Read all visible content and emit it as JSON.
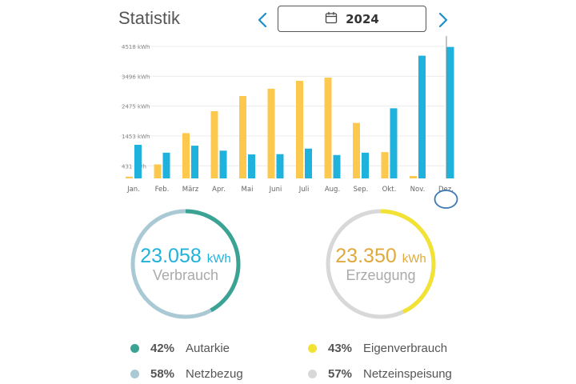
{
  "header": {
    "title": "Statistik",
    "year": "2024",
    "prev_icon": "chevron-left-icon",
    "next_icon": "chevron-right-icon",
    "calendar_icon": "calendar-icon"
  },
  "colors": {
    "erzeugung": "#fcc94e",
    "verbrauch": "#1fb2dc",
    "autarkie": "#3aa393",
    "netzbezug": "#a9c9d4",
    "eigenverbrauch": "#f2e234",
    "netzeinspeisung": "#d8d8d8"
  },
  "chart_data": {
    "type": "bar",
    "categories": [
      "Jan.",
      "Feb.",
      "März",
      "Apr.",
      "Mai",
      "Juni",
      "Juli",
      "Aug.",
      "Sep.",
      "Okt.",
      "Nov.",
      "Dez."
    ],
    "yticks": [
      "431 kWh",
      "1453 kWh",
      "2475 kWh",
      "3496 kWh",
      "4518 kWh"
    ],
    "ytick_values": [
      431,
      1453,
      2475,
      3496,
      4518
    ],
    "ylim": [
      0,
      4518
    ],
    "series": [
      {
        "values": [
          60,
          480,
          1550,
          2300,
          2820,
          3070,
          3340,
          3450,
          1900,
          900,
          80,
          0
        ]
      },
      {
        "values": [
          1150,
          880,
          1120,
          950,
          820,
          830,
          1020,
          800,
          880,
          2400,
          4200,
          4500
        ]
      }
    ],
    "selected_index": 11,
    "grid": true
  },
  "verbrauch": {
    "value": "23.058",
    "unit": "kWh",
    "label": "Verbrauch",
    "autarkie_fraction": 0.42
  },
  "erzeugung": {
    "value": "23.350",
    "unit": "kWh",
    "label": "Erzeugung",
    "eigen_fraction": 0.43
  },
  "legend": {
    "autarkie": {
      "pct": "42%",
      "label": "Autarkie"
    },
    "netzbezug": {
      "pct": "58%",
      "label": "Netzbezug"
    },
    "eigenverbrauch": {
      "pct": "43%",
      "label": "Eigenverbrauch"
    },
    "netzeinspeisung": {
      "pct": "57%",
      "label": "Netzeinspeisung"
    }
  }
}
